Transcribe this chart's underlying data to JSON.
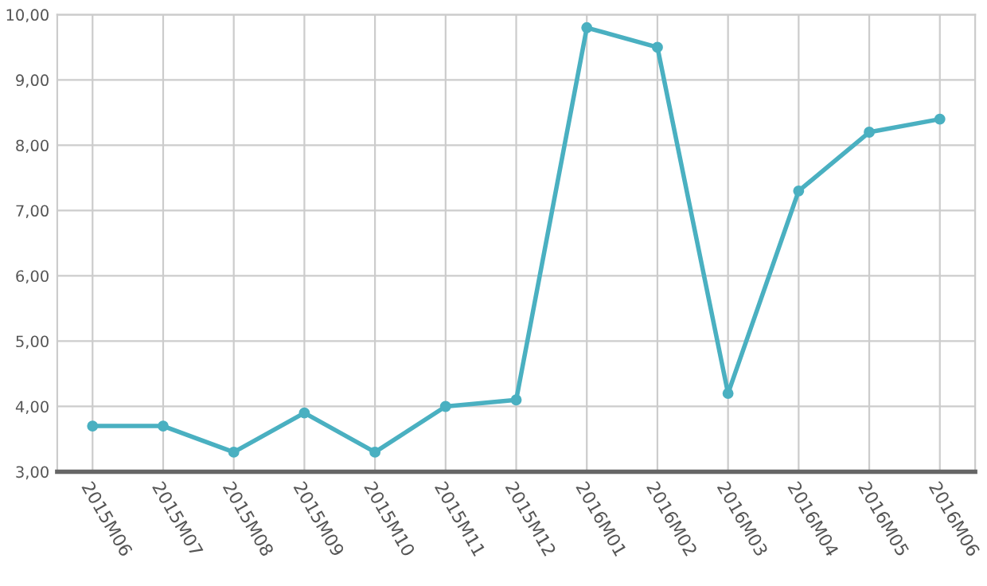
{
  "chart_data": {
    "type": "line",
    "categories": [
      "2015M06",
      "2015M07",
      "2015M08",
      "2015M09",
      "2015M10",
      "2015M11",
      "2015M12",
      "2016M01",
      "2016M02",
      "2016M03",
      "2016M04",
      "2016M05",
      "2016M06"
    ],
    "series": [
      {
        "color": "#4ab0c1",
        "values": [
          3.7,
          3.7,
          3.3,
          3.9,
          3.3,
          4.0,
          4.1,
          9.8,
          9.5,
          4.2,
          7.3,
          8.2,
          8.4
        ]
      }
    ],
    "ylim": [
      3,
      10
    ],
    "yticks": [
      {
        "value": 3,
        "label": "3,00"
      },
      {
        "value": 4,
        "label": "4,00"
      },
      {
        "value": 5,
        "label": "5,00"
      },
      {
        "value": 6,
        "label": "6,00"
      },
      {
        "value": 7,
        "label": "7,00"
      },
      {
        "value": 8,
        "label": "8,00"
      },
      {
        "value": 9,
        "label": "9,00"
      },
      {
        "value": 10,
        "label": "10,00"
      }
    ],
    "grid": true,
    "marker": "circle",
    "line_style": "solid",
    "legend": false
  }
}
